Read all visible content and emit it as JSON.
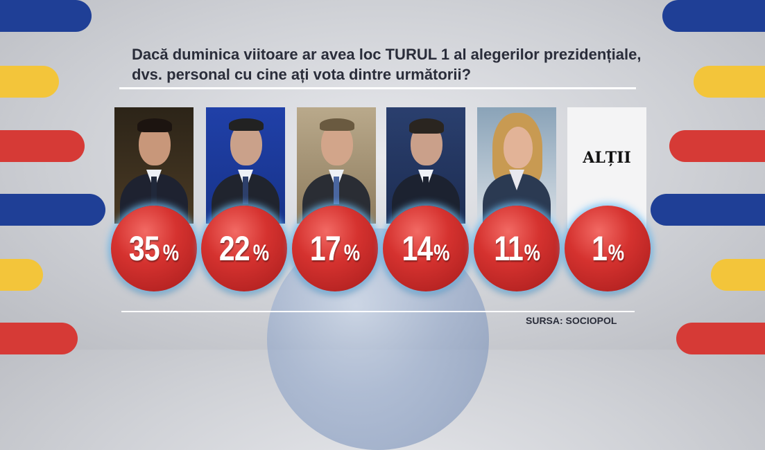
{
  "question": "Dacă duminica viitoare ar avea loc TURUL 1 al alegerilor prezidențiale, dvs. personal cu cine ați vota dintre următorii?",
  "source": "SURSA: SOCIOPOL",
  "chart_data": {
    "type": "bar",
    "title": "Dacă duminica viitoare ar avea loc TURUL 1 al alegerilor prezidențiale, dvs. personal cu cine ați vota dintre următorii?",
    "unit": "%",
    "categories": [
      "",
      "",
      "",
      "",
      "",
      "ALȚII"
    ],
    "values": [
      35,
      22,
      17,
      14,
      11,
      1
    ],
    "labels": [
      "35",
      "22",
      "17",
      "14",
      "11",
      "1"
    ],
    "colors": {
      "bubble": "#d5322f",
      "glow": "#8fd0ff"
    }
  }
}
